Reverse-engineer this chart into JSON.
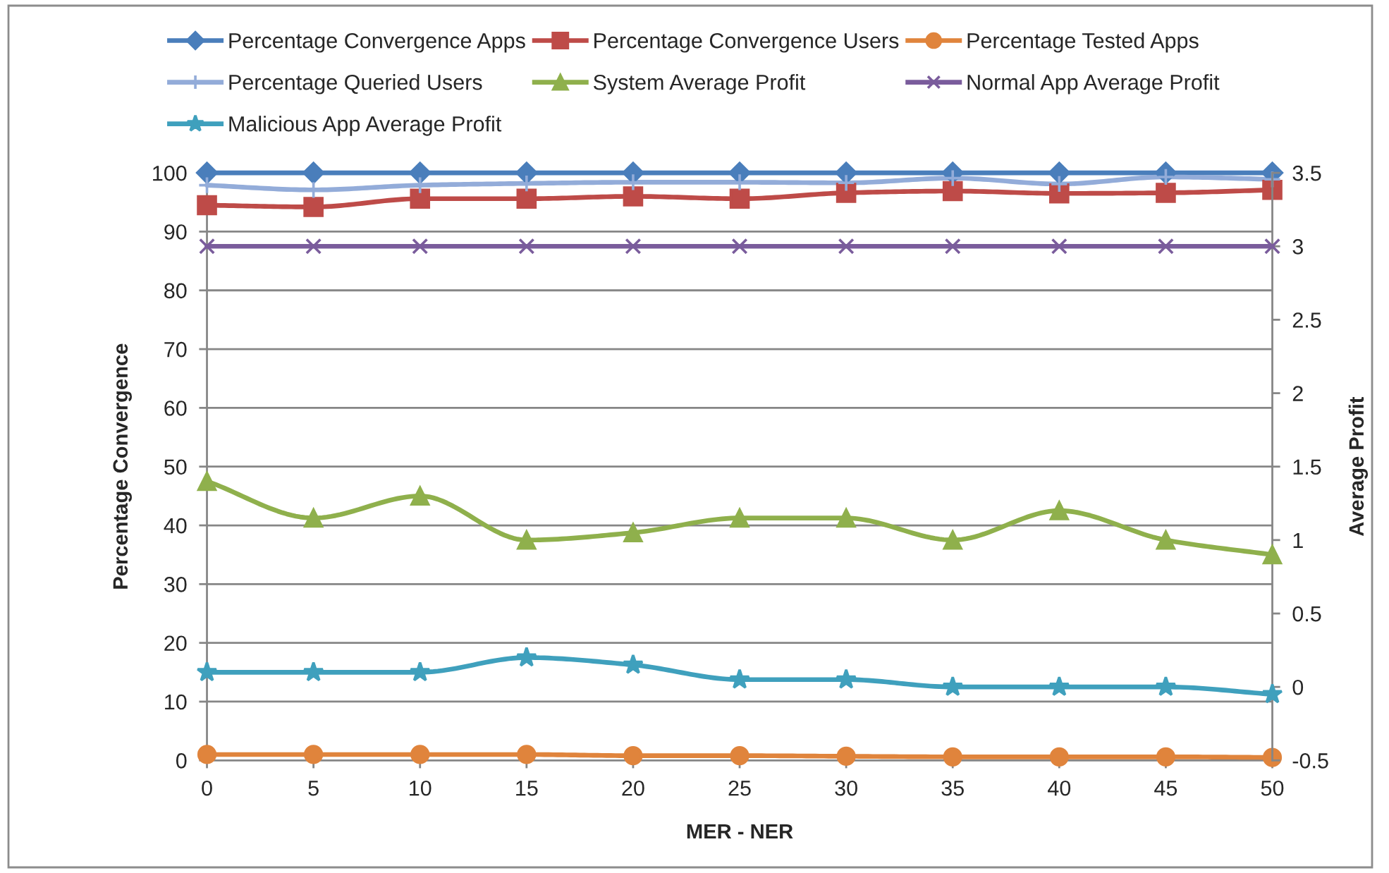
{
  "chart_data": {
    "type": "line",
    "xlabel": "MER - NER",
    "ylabel": "Percentage Convergence",
    "y2label": "Average Profit",
    "x": [
      0,
      5,
      10,
      15,
      20,
      25,
      30,
      35,
      40,
      45,
      50
    ],
    "xlim": [
      0,
      50
    ],
    "xticks": [
      0,
      5,
      10,
      15,
      20,
      25,
      30,
      35,
      40,
      45,
      50
    ],
    "ylim": [
      0,
      100
    ],
    "yticks": [
      0,
      10,
      20,
      30,
      40,
      50,
      60,
      70,
      80,
      90,
      100
    ],
    "y2lim": [
      -0.5,
      3.5
    ],
    "y2ticks": [
      -0.5,
      0,
      0.5,
      1,
      1.5,
      2,
      2.5,
      3,
      3.5
    ],
    "grid": "y",
    "legend": "top",
    "series": [
      {
        "name": "Percentage Convergence Apps",
        "color": "#4a7ebb",
        "marker": "diamond",
        "values": [
          100,
          100,
          100,
          100,
          100,
          100,
          100,
          100,
          100,
          100,
          100
        ]
      },
      {
        "name": "Percentage Convergence Users",
        "color": "#be4b48",
        "marker": "square",
        "values": [
          94.5,
          94.2,
          95.6,
          95.6,
          96.0,
          95.6,
          96.6,
          96.9,
          96.5,
          96.6,
          97.1
        ]
      },
      {
        "name": "Percentage Tested Apps",
        "color": "#e0843c",
        "marker": "circle",
        "values": [
          1,
          1,
          1,
          1,
          0.8,
          0.8,
          0.7,
          0.6,
          0.6,
          0.6,
          0.5
        ]
      },
      {
        "name": "Percentage Queried Users",
        "color": "#93acd9",
        "marker": "plus",
        "values": [
          97.9,
          97.1,
          97.9,
          98.2,
          98.4,
          98.4,
          98.3,
          99.1,
          98.1,
          99.3,
          98.9
        ]
      },
      {
        "name": "System Average Profit",
        "color": "#8fb04c",
        "marker": "triangle",
        "axis": "y2",
        "values": [
          1.4,
          1.15,
          1.3,
          1.0,
          1.05,
          1.15,
          1.15,
          1.0,
          1.2,
          1.0,
          0.9
        ]
      },
      {
        "name": "Normal App Average Profit",
        "color": "#7a5c9c",
        "marker": "cross",
        "axis": "y2",
        "values": [
          3,
          3,
          3,
          3,
          3,
          3,
          3,
          3,
          3,
          3,
          3
        ]
      },
      {
        "name": "Malicious App Average Profit",
        "color": "#3fa0bd",
        "marker": "star",
        "axis": "y2",
        "values": [
          0.1,
          0.1,
          0.1,
          0.2,
          0.15,
          0.05,
          0.05,
          0,
          0,
          0,
          -0.05
        ]
      }
    ]
  }
}
